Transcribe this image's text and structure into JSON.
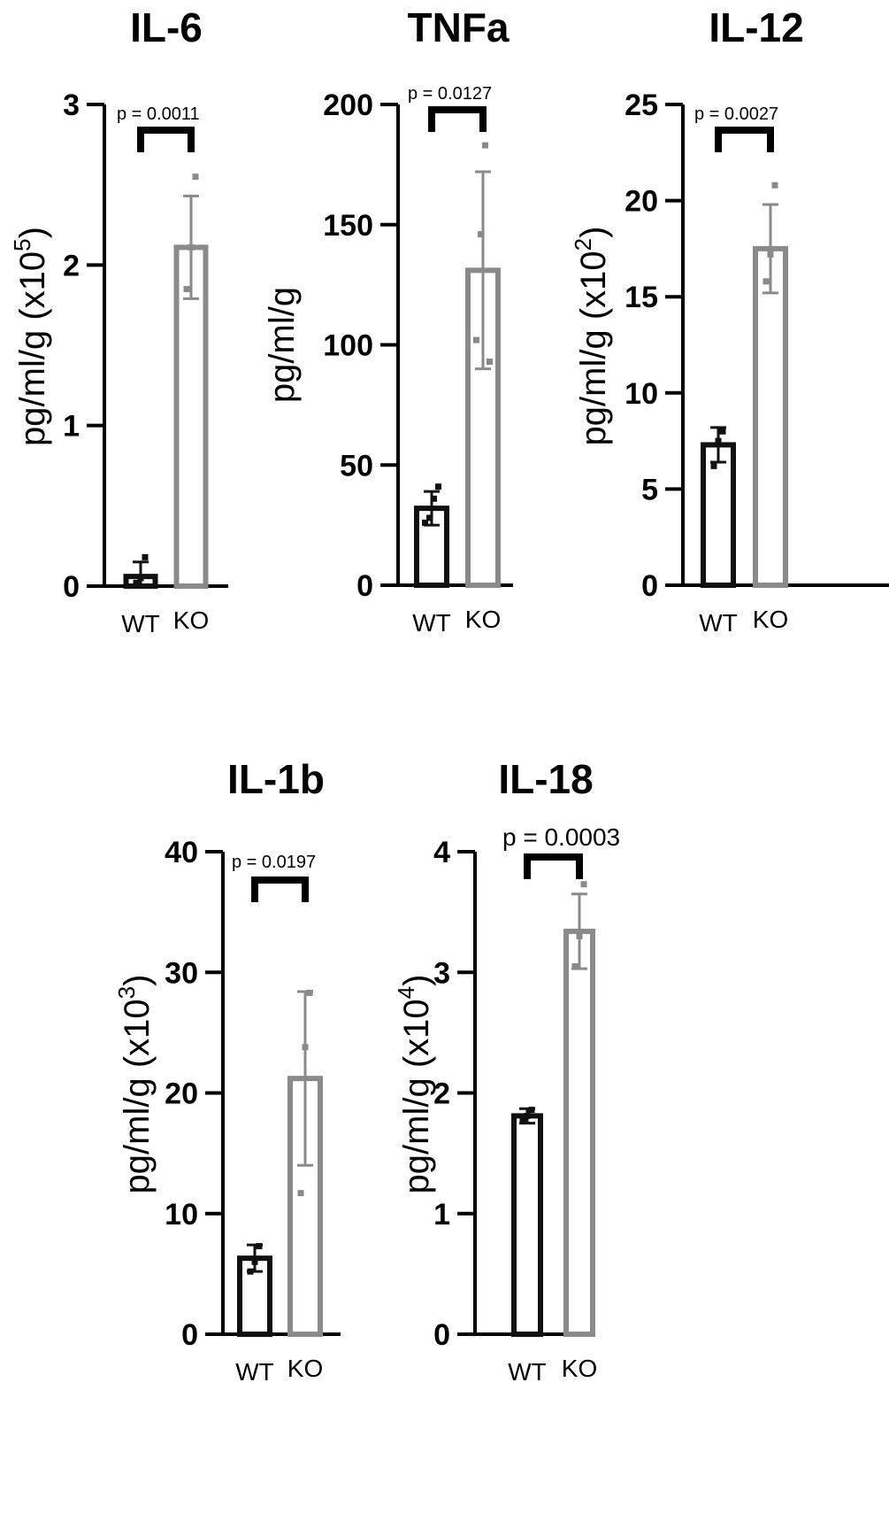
{
  "chart_data": [
    {
      "type": "bar",
      "title": "IL-6",
      "ylabel": "pg/ml/g (x10",
      "ylabel_exp": "5",
      "ylabel_close": ")",
      "ylim": [
        0,
        3
      ],
      "yticks": [
        "0",
        "1",
        "2",
        "3"
      ],
      "categories": [
        "WT",
        "KO"
      ],
      "values": [
        0.06,
        2.11
      ],
      "errors": [
        0.09,
        0.32
      ],
      "points": [
        [
          0.02,
          0.05,
          0.18
        ],
        [
          1.85,
          2.11,
          2.55
        ]
      ],
      "colors": [
        "#111111",
        "#8a8a8a"
      ],
      "p_value": "p = 0.0011"
    },
    {
      "type": "bar",
      "title": "TNFa",
      "ylabel": "pg/ml/g",
      "ylabel_exp": "",
      "ylabel_close": "",
      "ylim": [
        0,
        200
      ],
      "yticks": [
        "0",
        "50",
        "100",
        "150",
        "200"
      ],
      "categories": [
        "WT",
        "KO"
      ],
      "values": [
        32,
        131
      ],
      "errors": [
        7,
        41
      ],
      "points": [
        [
          26,
          28,
          36,
          41
        ],
        [
          102,
          146,
          183,
          93
        ]
      ],
      "colors": [
        "#111111",
        "#8a8a8a"
      ],
      "p_value": "p = 0.0127"
    },
    {
      "type": "bar",
      "title": "IL-12",
      "ylabel": "pg/ml/g (x10",
      "ylabel_exp": "2",
      "ylabel_close": ")",
      "ylim": [
        0,
        25
      ],
      "yticks": [
        "0",
        "5",
        "10",
        "15",
        "20",
        "25"
      ],
      "categories": [
        "WT",
        "KO"
      ],
      "values": [
        7.3,
        17.5
      ],
      "errors": [
        0.9,
        2.3
      ],
      "points": [
        [
          6.2,
          7.5,
          8.0
        ],
        [
          15.8,
          17.2,
          20.8
        ]
      ],
      "colors": [
        "#111111",
        "#8a8a8a"
      ],
      "p_value": "p = 0.0027"
    },
    {
      "type": "bar",
      "title": "IL-1b",
      "ylabel": "pg/ml/g (x10",
      "ylabel_exp": "3",
      "ylabel_close": ")",
      "ylim": [
        0,
        40
      ],
      "yticks": [
        "0",
        "10",
        "20",
        "30",
        "40"
      ],
      "categories": [
        "WT",
        "KO"
      ],
      "values": [
        6.3,
        21.2
      ],
      "errors": [
        1.1,
        7.2
      ],
      "points": [
        [
          5.2,
          6.0,
          7.3
        ],
        [
          11.7,
          23.8,
          28.3
        ]
      ],
      "colors": [
        "#111111",
        "#8a8a8a"
      ],
      "p_value": "p = 0.0197"
    },
    {
      "type": "bar",
      "title": "IL-18",
      "ylabel": "pg/ml/g (x10",
      "ylabel_exp": "4",
      "ylabel_close": ")",
      "ylim": [
        0,
        4
      ],
      "yticks": [
        "0",
        "1",
        "2",
        "3",
        "4"
      ],
      "categories": [
        "WT",
        "KO"
      ],
      "values": [
        1.81,
        3.34
      ],
      "errors": [
        0.06,
        0.31
      ],
      "points": [
        [
          1.78,
          1.81,
          1.86
        ],
        [
          3.05,
          3.3,
          3.73
        ]
      ],
      "colors": [
        "#111111",
        "#8a8a8a"
      ],
      "p_value": "p = 0.0003"
    }
  ]
}
